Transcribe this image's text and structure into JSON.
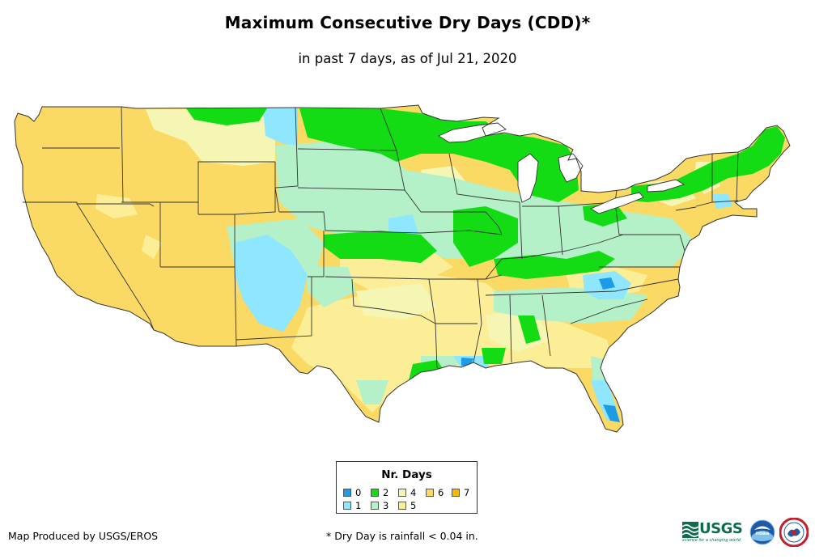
{
  "title": "Maximum Consecutive Dry Days (CDD)*",
  "subtitle": "in past 7 days, as of Jul 21, 2020",
  "legend": {
    "title": "Nr. Days",
    "items": [
      {
        "label": "0",
        "color": "#1e9be6"
      },
      {
        "label": "1",
        "color": "#8ee6ff"
      },
      {
        "label": "2",
        "color": "#14dc14"
      },
      {
        "label": "3",
        "color": "#b4f0c8"
      },
      {
        "label": "4",
        "color": "#f5f5b4"
      },
      {
        "label": "5",
        "color": "#fcee96"
      },
      {
        "label": "6",
        "color": "#fbd965"
      },
      {
        "label": "7",
        "color": "#f5b800"
      }
    ]
  },
  "credit": "Map Produced by USGS/EROS",
  "footnote": "* Dry Day is rainfall < 0.04 in.",
  "logos": {
    "usgs_text": "USGS",
    "usgs_tagline": "science for a changing world",
    "noaa_text": "noaa"
  }
}
